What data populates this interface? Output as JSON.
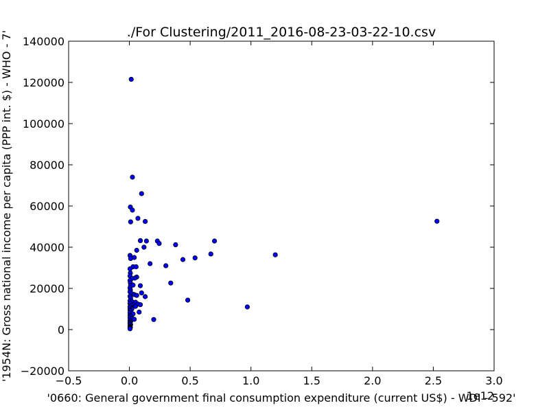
{
  "chart_data": {
    "type": "scatter",
    "title": "./For Clustering/2011_2016-08-23-03-22-10.csv",
    "xlabel": "'0660: General government final consumption expenditure  (current US$) - WDI - 592'",
    "ylabel": "'1954N: Gross national income per capita (PPP int. $) - WHO - 7'",
    "x_offset_label": "1e12",
    "xlim": [
      -0.5,
      3.0
    ],
    "ylim": [
      -20000,
      140000
    ],
    "x_ticks": [
      -0.5,
      0.0,
      0.5,
      1.0,
      1.5,
      2.0,
      2.5,
      3.0
    ],
    "x_tick_labels": [
      "−0.5",
      "0.0",
      "0.5",
      "1.0",
      "1.5",
      "2.0",
      "2.5",
      "3.0"
    ],
    "y_ticks": [
      -20000,
      0,
      20000,
      40000,
      60000,
      80000,
      100000,
      120000,
      140000
    ],
    "y_tick_labels": [
      "−20000",
      "0",
      "20000",
      "40000",
      "60000",
      "80000",
      "100000",
      "120000",
      "140000"
    ],
    "grid": false,
    "marker_color": "#0000ff",
    "marker_edge_color": "#000000",
    "points": [
      [
        0.015,
        121500
      ],
      [
        0.025,
        74000
      ],
      [
        0.1,
        66000
      ],
      [
        0.008,
        59500
      ],
      [
        0.025,
        58000
      ],
      [
        0.07,
        54000
      ],
      [
        0.01,
        52300
      ],
      [
        0.13,
        52500
      ],
      [
        2.53,
        52600
      ],
      [
        0.09,
        43200
      ],
      [
        0.14,
        43000
      ],
      [
        0.23,
        43000
      ],
      [
        0.245,
        41800
      ],
      [
        0.7,
        43000
      ],
      [
        0.38,
        41200
      ],
      [
        0.12,
        40000
      ],
      [
        0.06,
        38500
      ],
      [
        0.67,
        36700
      ],
      [
        1.2,
        36300
      ],
      [
        0.005,
        36000
      ],
      [
        0.01,
        34500
      ],
      [
        0.04,
        35000
      ],
      [
        0.44,
        34000
      ],
      [
        0.54,
        34800
      ],
      [
        0.17,
        32000
      ],
      [
        0.3,
        31000
      ],
      [
        0.03,
        30500
      ],
      [
        0.055,
        30500
      ],
      [
        0.005,
        29500
      ],
      [
        0.008,
        27500
      ],
      [
        0.005,
        26000
      ],
      [
        0.06,
        25500
      ],
      [
        0.045,
        25000
      ],
      [
        0.02,
        24800
      ],
      [
        0.005,
        23800
      ],
      [
        0.008,
        22700
      ],
      [
        0.34,
        22600
      ],
      [
        0.01,
        21500
      ],
      [
        0.03,
        21600
      ],
      [
        0.09,
        21300
      ],
      [
        0.005,
        20300
      ],
      [
        0.008,
        19200
      ],
      [
        0.005,
        18300
      ],
      [
        0.1,
        17800
      ],
      [
        0.02,
        17400
      ],
      [
        0.04,
        17000
      ],
      [
        0.06,
        16600
      ],
      [
        0.005,
        16200
      ],
      [
        0.13,
        16000
      ],
      [
        0.01,
        15300
      ],
      [
        0.48,
        14300
      ],
      [
        0.005,
        14000
      ],
      [
        0.02,
        13600
      ],
      [
        0.05,
        13300
      ],
      [
        0.005,
        12700
      ],
      [
        0.07,
        12400
      ],
      [
        0.09,
        12100
      ],
      [
        0.03,
        12000
      ],
      [
        0.01,
        11700
      ],
      [
        0.05,
        11300
      ],
      [
        0.005,
        11100
      ],
      [
        0.97,
        11000
      ],
      [
        0.005,
        10500
      ],
      [
        0.02,
        10000
      ],
      [
        0.005,
        9500
      ],
      [
        0.01,
        9000
      ],
      [
        0.08,
        8500
      ],
      [
        0.005,
        8200
      ],
      [
        0.03,
        7600
      ],
      [
        0.005,
        7000
      ],
      [
        0.01,
        6500
      ],
      [
        0.005,
        5800
      ],
      [
        0.02,
        5500
      ],
      [
        0.04,
        5000
      ],
      [
        0.2,
        4900
      ],
      [
        0.005,
        4500
      ],
      [
        0.01,
        4000
      ],
      [
        0.005,
        3500
      ],
      [
        0.005,
        3000
      ],
      [
        0.01,
        2500
      ],
      [
        0.005,
        2000
      ],
      [
        0.005,
        1500
      ],
      [
        0.008,
        1200
      ],
      [
        0.005,
        900
      ],
      [
        0.005,
        600
      ],
      [
        0.005,
        400
      ]
    ]
  }
}
